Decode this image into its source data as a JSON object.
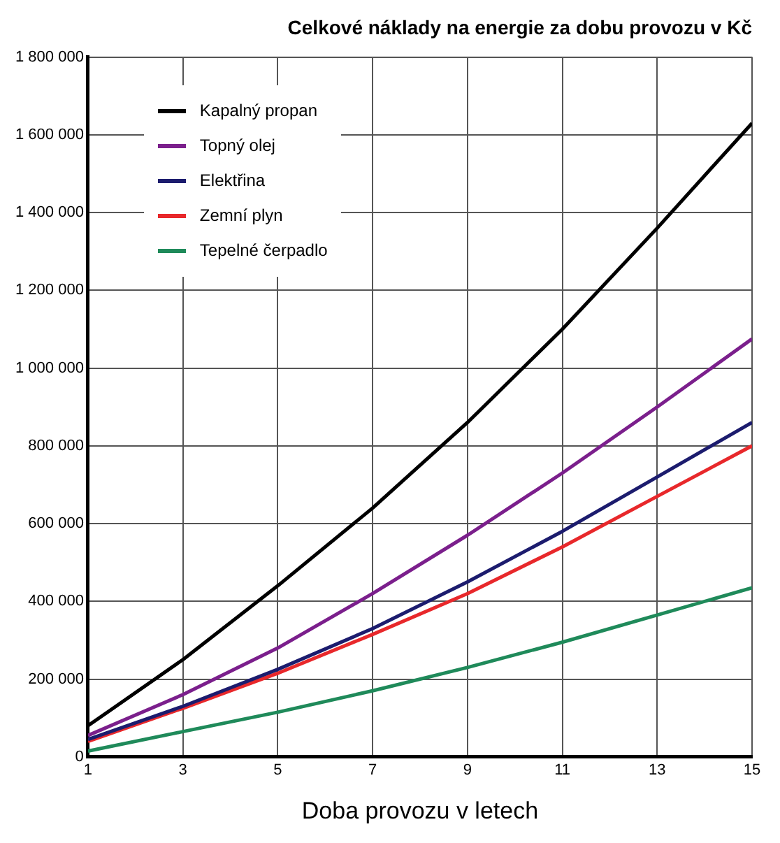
{
  "chart_data": {
    "type": "line",
    "title": "Celkové náklady na energie za dobu provozu v Kč",
    "xlabel": "Doba provozu v letech",
    "x": [
      1,
      3,
      5,
      7,
      9,
      11,
      13,
      15
    ],
    "series": [
      {
        "name": "Kapalný propan",
        "color": "#000000",
        "values": [
          80000,
          250000,
          440000,
          640000,
          860000,
          1100000,
          1360000,
          1630000
        ]
      },
      {
        "name": "Topný olej",
        "color": "#7b1f8c",
        "values": [
          55000,
          160000,
          280000,
          420000,
          570000,
          730000,
          900000,
          1075000
        ]
      },
      {
        "name": "Elektřina",
        "color": "#1c1c6e",
        "values": [
          45000,
          130000,
          225000,
          330000,
          450000,
          580000,
          720000,
          860000
        ]
      },
      {
        "name": "Zemní plyn",
        "color": "#e8282b",
        "values": [
          40000,
          125000,
          215000,
          315000,
          420000,
          540000,
          670000,
          800000
        ]
      },
      {
        "name": "Tepelné čerpadlo",
        "color": "#1f8a5a",
        "values": [
          15000,
          65000,
          115000,
          170000,
          230000,
          295000,
          365000,
          435000
        ]
      }
    ],
    "xlim": [
      1,
      15
    ],
    "xticks": [
      1,
      3,
      5,
      7,
      9,
      11,
      13,
      15
    ],
    "ylim": [
      0,
      1800000
    ],
    "yticks": [
      0,
      {
        "value": 200000,
        "label": "200 000"
      },
      {
        "value": 400000,
        "label": "400 000"
      },
      {
        "value": 600000,
        "label": "600 000"
      },
      {
        "value": 800000,
        "label": "800 000"
      },
      {
        "value": 1000000,
        "label": "1 000 000"
      },
      {
        "value": 1200000,
        "label": "1 200 000"
      },
      {
        "value": 1400000,
        "label": "1 400 000"
      },
      {
        "value": 1600000,
        "label": "1 600 000"
      },
      {
        "value": 1800000,
        "label": "1 800 000"
      }
    ],
    "grid": true,
    "legend": "top left",
    "marker": "none",
    "line_style": "solid"
  }
}
